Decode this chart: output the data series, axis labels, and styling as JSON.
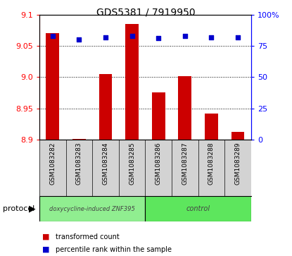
{
  "title": "GDS5381 / 7919950",
  "samples": [
    "GSM1083282",
    "GSM1083283",
    "GSM1083284",
    "GSM1083285",
    "GSM1083286",
    "GSM1083287",
    "GSM1083288",
    "GSM1083289"
  ],
  "bar_values": [
    9.07,
    8.901,
    9.005,
    9.085,
    8.975,
    9.001,
    8.942,
    8.912
  ],
  "percentile_values": [
    83,
    80,
    82,
    83,
    81,
    83,
    82,
    82
  ],
  "bar_color": "#cc0000",
  "dot_color": "#0000cc",
  "ylim": [
    8.9,
    9.1
  ],
  "y2lim": [
    0,
    100
  ],
  "y_ticks": [
    8.9,
    8.95,
    9.0,
    9.05,
    9.1
  ],
  "y2_ticks": [
    0,
    25,
    50,
    75,
    100
  ],
  "y2_tick_labels": [
    "0",
    "25",
    "50",
    "75",
    "100%"
  ],
  "groups": [
    {
      "label": "doxycycline-induced ZNF395",
      "start": 0,
      "end": 3,
      "color": "#90ee90"
    },
    {
      "label": "control",
      "start": 4,
      "end": 7,
      "color": "#5de65d"
    }
  ],
  "protocol_label": "protocol",
  "legend_items": [
    {
      "label": "transformed count",
      "color": "#cc0000"
    },
    {
      "label": "percentile rank within the sample",
      "color": "#0000cc"
    }
  ],
  "bar_width": 0.5,
  "base_value": 8.9,
  "xlabel_bg": "#d3d3d3",
  "spine_left_color": "red",
  "spine_right_color": "blue",
  "grid_color": "black",
  "title_fontsize": 10,
  "tick_fontsize": 8,
  "sample_fontsize": 6.5
}
